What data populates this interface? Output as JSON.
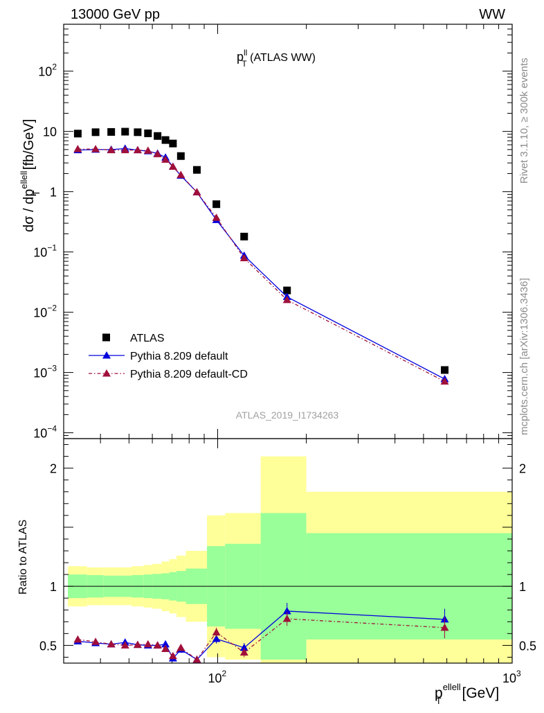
{
  "header": {
    "left_title": "13000 GeV pp",
    "right_title": "WW"
  },
  "side_labels": {
    "version": "Rivet 3.1.10, ≥ 300k events",
    "source": "mcplots.cern.ch [arXiv:1306.3436]"
  },
  "plot_title": {
    "main": "p",
    "sup": "ll",
    "sub": "T",
    "rest": " (ATLAS WW)"
  },
  "analysis_id": "ATLAS_2019_I1734263",
  "chart_data": [
    {
      "type": "scatter",
      "panel": "main",
      "xscale": "log",
      "yscale": "log",
      "xlim": [
        30,
        1000
      ],
      "ylim": [
        8e-05,
        600
      ],
      "ylabel": {
        "prefix": "dσ / dp",
        "sup": "ellell",
        "sub": "T",
        "suffix": " [fb/GeV]"
      },
      "y_ticks": [
        {
          "v": 100,
          "base": "10",
          "exp": "2"
        },
        {
          "v": 10,
          "base": "10",
          "exp": ""
        },
        {
          "v": 1,
          "base": "1",
          "exp": ""
        },
        {
          "v": 0.1,
          "base": "10",
          "exp": "−1"
        },
        {
          "v": 0.01,
          "base": "10",
          "exp": "−2"
        },
        {
          "v": 0.001,
          "base": "10",
          "exp": "−3"
        },
        {
          "v": 0.0001,
          "base": "10",
          "exp": "−4"
        }
      ],
      "legend_position": "bottom-left",
      "series": [
        {
          "name": "ATLAS",
          "marker": "square",
          "color": "#000000",
          "x": [
            33.5,
            38.5,
            43.5,
            48.5,
            53.5,
            58,
            62.5,
            66.5,
            70.5,
            75,
            85,
            99,
            123,
            172,
            590
          ],
          "y": [
            9.2,
            9.7,
            9.8,
            9.9,
            9.7,
            9.3,
            8.4,
            7.2,
            6.3,
            3.9,
            2.3,
            0.62,
            0.18,
            0.023,
            0.0011
          ]
        },
        {
          "name": "Pythia 8.209 default",
          "marker": "triangle",
          "line": "solid",
          "color": "#0000dd",
          "x": [
            33.5,
            38.5,
            43.5,
            48.5,
            53.5,
            58,
            62.5,
            66.5,
            70.5,
            75,
            85,
            99,
            123,
            172,
            590
          ],
          "y": [
            4.9,
            5.0,
            5.0,
            5.2,
            4.9,
            4.7,
            4.3,
            3.7,
            2.6,
            1.85,
            0.98,
            0.34,
            0.087,
            0.018,
            0.00078
          ]
        },
        {
          "name": "Pythia 8.209 default-CD",
          "marker": "triangle",
          "line": "dashdot",
          "color": "#a0103a",
          "x": [
            33.5,
            38.5,
            43.5,
            48.5,
            53.5,
            58,
            62.5,
            66.5,
            70.5,
            75,
            85,
            99,
            123,
            172,
            590
          ],
          "y": [
            5.1,
            5.1,
            4.9,
            4.9,
            4.9,
            4.8,
            4.2,
            3.4,
            2.6,
            1.9,
            0.98,
            0.37,
            0.079,
            0.016,
            0.00071
          ]
        }
      ]
    },
    {
      "type": "scatter",
      "panel": "ratio",
      "xscale": "log",
      "yscale": "linear",
      "xlim": [
        30,
        1000
      ],
      "ylim": [
        0.35,
        2.25
      ],
      "ylabel": "Ratio to ATLAS",
      "xlabel": {
        "prefix": "p",
        "sup": "ellell",
        "sub": "T",
        "suffix": " [GeV]"
      },
      "x_ticks": [
        {
          "v": 100,
          "base": "10",
          "exp": "2"
        },
        {
          "v": 1000,
          "base": "10",
          "exp": "3"
        }
      ],
      "y_ticks": [
        {
          "v": 0.5,
          "label": "0.5"
        },
        {
          "v": 1,
          "label": "1"
        },
        {
          "v": 2,
          "label": "2"
        }
      ],
      "bands": {
        "edges": [
          31,
          36,
          41,
          46,
          51,
          56,
          60,
          64.5,
          68.5,
          72.5,
          78,
          92,
          106,
          140,
          200,
          1000
        ],
        "inner": [
          0.1,
          0.095,
          0.09,
          0.09,
          0.095,
          0.1,
          0.105,
          0.11,
          0.12,
          0.13,
          0.15,
          0.34,
          0.36,
          0.62,
          0.45
        ],
        "outer": [
          0.17,
          0.16,
          0.16,
          0.16,
          0.17,
          0.18,
          0.19,
          0.21,
          0.23,
          0.26,
          0.3,
          0.6,
          0.62,
          1.1,
          0.8
        ],
        "inner_color": "#99ff99",
        "outer_color": "#ffff99"
      },
      "series": [
        {
          "name": "Pythia 8.209 default",
          "marker": "triangle",
          "line": "solid",
          "color": "#0000dd",
          "x": [
            33.5,
            38.5,
            43.5,
            48.5,
            53.5,
            58,
            62.5,
            66.5,
            70.5,
            75,
            85,
            99,
            123,
            172,
            590
          ],
          "y": [
            0.535,
            0.52,
            0.51,
            0.525,
            0.505,
            0.5,
            0.5,
            0.51,
            0.39,
            0.465,
            0.38,
            0.555,
            0.48,
            0.79,
            0.72
          ],
          "err": [
            0.02,
            0.02,
            0.02,
            0.02,
            0.02,
            0.02,
            0.02,
            0.02,
            0.025,
            0.025,
            0.025,
            0.04,
            0.04,
            0.07,
            0.09
          ]
        },
        {
          "name": "Pythia 8.209 default-CD",
          "marker": "triangle",
          "line": "dashdot",
          "color": "#a0103a",
          "x": [
            33.5,
            38.5,
            43.5,
            48.5,
            53.5,
            58,
            62.5,
            66.5,
            70.5,
            75,
            85,
            99,
            123,
            172,
            590
          ],
          "y": [
            0.55,
            0.53,
            0.51,
            0.5,
            0.505,
            0.51,
            0.5,
            0.47,
            0.41,
            0.48,
            0.38,
            0.61,
            0.44,
            0.725,
            0.65
          ],
          "err": [
            0.02,
            0.02,
            0.02,
            0.02,
            0.02,
            0.02,
            0.02,
            0.02,
            0.025,
            0.025,
            0.025,
            0.04,
            0.04,
            0.06,
            0.09
          ]
        }
      ]
    }
  ]
}
